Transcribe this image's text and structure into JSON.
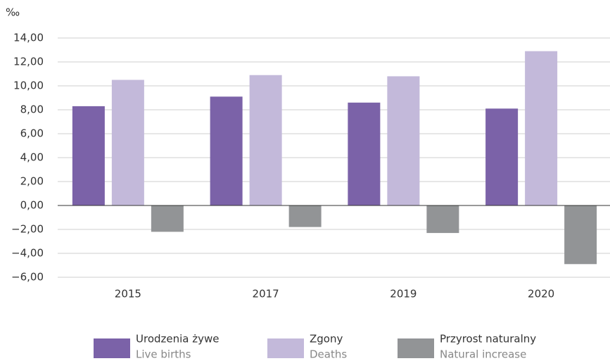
{
  "chart_data": {
    "type": "bar",
    "y_label": "‰",
    "categories": [
      "2015",
      "2017",
      "2019",
      "2020"
    ],
    "series": [
      {
        "name": "Urodzenia żywe",
        "name_en": "Live births",
        "color": "#7b62a8",
        "values": [
          8.3,
          9.1,
          8.6,
          8.1
        ]
      },
      {
        "name": "Zgony",
        "name_en": "Deaths",
        "color": "#c3b9da",
        "values": [
          10.5,
          10.9,
          10.8,
          12.9
        ]
      },
      {
        "name": "Przyrost naturalny",
        "name_en": "Natural increase",
        "color": "#929496",
        "values": [
          -2.2,
          -1.8,
          -2.3,
          -4.9
        ]
      }
    ],
    "ylim": [
      -6,
      14
    ],
    "yticks": [
      {
        "value": -6,
        "label": "−6,00"
      },
      {
        "value": -4,
        "label": "−4,00"
      },
      {
        "value": -2,
        "label": "−2,00"
      },
      {
        "value": 0,
        "label": "0,00"
      },
      {
        "value": 2,
        "label": "2,00"
      },
      {
        "value": 4,
        "label": "4,00"
      },
      {
        "value": 6,
        "label": "6,00"
      },
      {
        "value": 8,
        "label": "8,00"
      },
      {
        "value": 10,
        "label": "10,00"
      },
      {
        "value": 12,
        "label": "12,00"
      },
      {
        "value": 14,
        "label": "14,00"
      }
    ],
    "grid": true
  }
}
